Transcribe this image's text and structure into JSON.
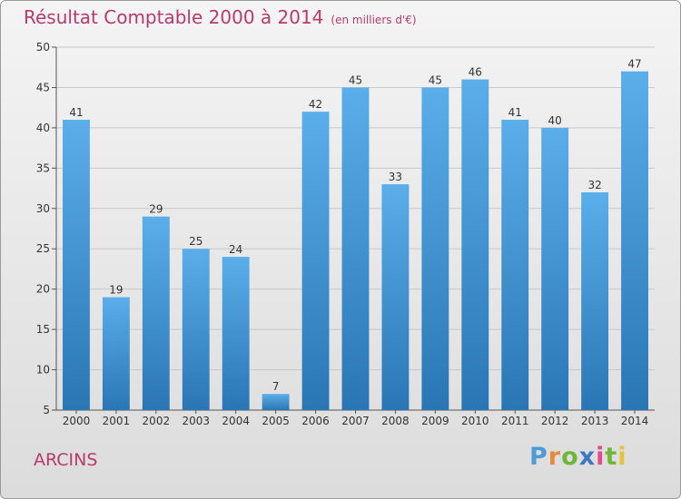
{
  "header": {
    "title": "Résultat Comptable 2000 à 2014",
    "unit": "(en milliers d'€)"
  },
  "location": "ARCINS",
  "logo": {
    "letters": [
      "P",
      "r",
      "o",
      "x",
      "i",
      "t",
      "i"
    ],
    "colors": [
      "#4f9bd6",
      "#e8883a",
      "#6fb63a",
      "#3a78c4",
      "#e04c8a",
      "#6fb63a",
      "#e8c33a"
    ]
  },
  "chart_data": {
    "type": "bar",
    "title": "Résultat Comptable 2000 à 2014",
    "xlabel": "",
    "ylabel": "",
    "categories": [
      "2000",
      "2001",
      "2002",
      "2003",
      "2004",
      "2005",
      "2006",
      "2007",
      "2008",
      "2009",
      "2010",
      "2011",
      "2012",
      "2013",
      "2014"
    ],
    "values": [
      41,
      19,
      29,
      25,
      24,
      7,
      42,
      45,
      33,
      45,
      46,
      41,
      40,
      32,
      47
    ],
    "ylim": [
      5,
      50
    ],
    "yticks": [
      5,
      10,
      15,
      20,
      25,
      30,
      35,
      40,
      45,
      50
    ],
    "grid": true,
    "colors": {
      "bar_top": "#5aaeea",
      "bar_bottom": "#2a76b4",
      "grid": "#c8c8c8",
      "axis": "#555555"
    }
  }
}
